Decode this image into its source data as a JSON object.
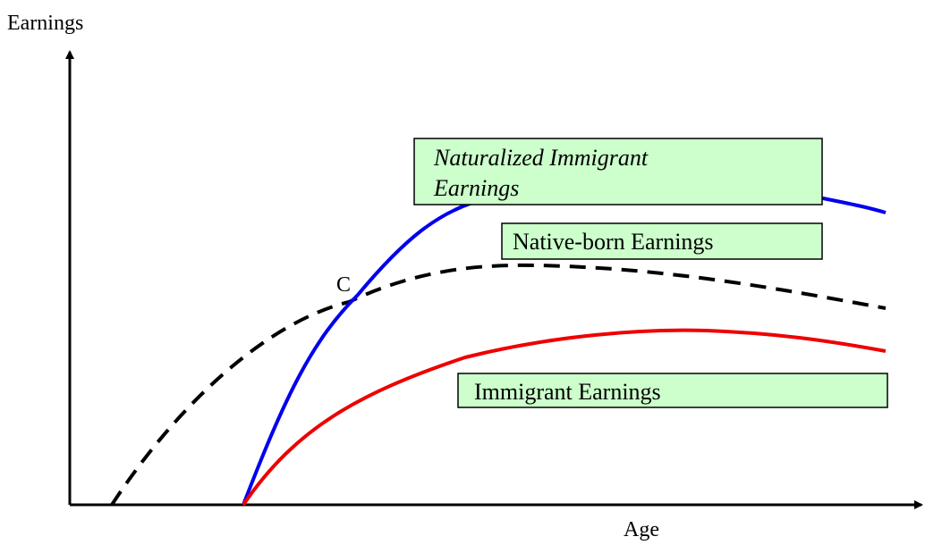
{
  "axes": {
    "y_label": "Earnings",
    "x_label": "Age"
  },
  "labels": {
    "naturalized": [
      "Naturalized Immigrant",
      "Earnings"
    ],
    "native": "Native-born Earnings",
    "immigrant": "Immigrant Earnings"
  },
  "point": "C"
}
